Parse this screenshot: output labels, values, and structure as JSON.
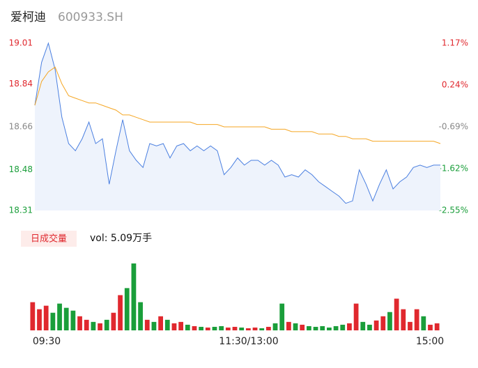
{
  "title": "爱柯迪",
  "subtitle": "600933.SH",
  "chart_data": [
    {
      "type": "line",
      "ylim": [
        18.31,
        19.01
      ],
      "yticks": [
        18.31,
        18.48,
        18.66,
        18.84,
        19.01
      ],
      "ytick_colors": [
        "#1a9e3a",
        "#1a9e3a",
        "#888888",
        "#e0282e",
        "#e0282e"
      ],
      "y2lim": [
        -2.55,
        1.17
      ],
      "y2ticks": [
        {
          "value": -2.55,
          "label": "-2.55%"
        },
        {
          "value": -1.62,
          "label": "-1.62%"
        },
        {
          "value": -0.69,
          "label": "-0.69%"
        },
        {
          "value": 0.24,
          "label": "0.24%"
        },
        {
          "value": 1.17,
          "label": "1.17%"
        }
      ],
      "series": [
        {
          "name": "price",
          "color": "#4a7fe0",
          "values": [
            18.75,
            18.93,
            19.01,
            18.9,
            18.7,
            18.59,
            18.56,
            18.61,
            18.68,
            18.59,
            18.61,
            18.42,
            18.56,
            18.69,
            18.56,
            18.52,
            18.49,
            18.59,
            18.58,
            18.59,
            18.53,
            18.58,
            18.59,
            18.56,
            18.58,
            18.56,
            18.58,
            18.56,
            18.46,
            18.49,
            18.53,
            18.5,
            18.52,
            18.52,
            18.5,
            18.52,
            18.5,
            18.45,
            18.46,
            18.45,
            18.48,
            18.46,
            18.43,
            18.41,
            18.39,
            18.37,
            18.34,
            18.35,
            18.48,
            18.42,
            18.35,
            18.42,
            18.48,
            18.4,
            18.43,
            18.45,
            18.49,
            18.5,
            18.49,
            18.5,
            18.5
          ]
        },
        {
          "name": "average",
          "color": "#f5a623",
          "values": [
            18.75,
            18.85,
            18.89,
            18.91,
            18.84,
            18.79,
            18.78,
            18.77,
            18.76,
            18.76,
            18.75,
            18.74,
            18.73,
            18.71,
            18.71,
            18.7,
            18.69,
            18.68,
            18.68,
            18.68,
            18.68,
            18.68,
            18.68,
            18.68,
            18.67,
            18.67,
            18.67,
            18.67,
            18.66,
            18.66,
            18.66,
            18.66,
            18.66,
            18.66,
            18.66,
            18.65,
            18.65,
            18.65,
            18.64,
            18.64,
            18.64,
            18.64,
            18.63,
            18.63,
            18.63,
            18.62,
            18.62,
            18.61,
            18.61,
            18.61,
            18.6,
            18.6,
            18.6,
            18.6,
            18.6,
            18.6,
            18.6,
            18.6,
            18.6,
            18.6,
            18.59
          ]
        }
      ]
    },
    {
      "type": "bar",
      "badge": "日成交量",
      "vol_label": "vol: 5.09万手",
      "up_color": "#e0282e",
      "down_color": "#1a9e3a",
      "x_labels": [
        "09:30",
        "11:30/13:00",
        "15:00"
      ],
      "values": [
        40,
        30,
        35,
        25,
        38,
        32,
        28,
        20,
        15,
        12,
        10,
        15,
        25,
        50,
        60,
        95,
        40,
        15,
        12,
        20,
        15,
        10,
        12,
        8,
        6,
        5,
        4,
        5,
        6,
        4,
        5,
        4,
        3,
        4,
        3,
        5,
        10,
        38,
        12,
        10,
        8,
        6,
        5,
        6,
        4,
        6,
        8,
        10,
        38,
        12,
        8,
        14,
        20,
        26,
        45,
        30,
        12,
        30,
        20,
        8,
        10
      ]
    }
  ]
}
